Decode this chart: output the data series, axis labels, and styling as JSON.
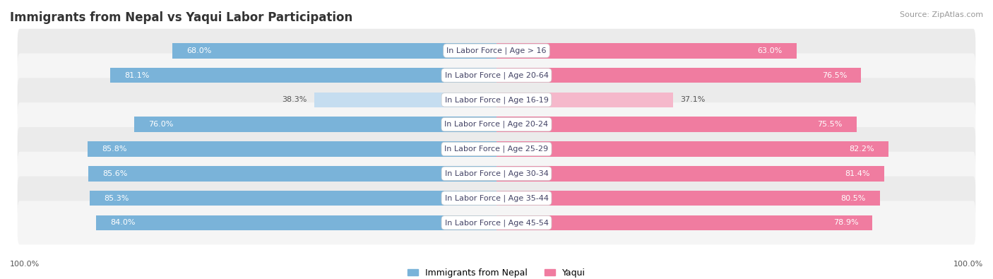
{
  "title": "Immigrants from Nepal vs Yaqui Labor Participation",
  "source": "Source: ZipAtlas.com",
  "categories": [
    "In Labor Force | Age > 16",
    "In Labor Force | Age 20-64",
    "In Labor Force | Age 16-19",
    "In Labor Force | Age 20-24",
    "In Labor Force | Age 25-29",
    "In Labor Force | Age 30-34",
    "In Labor Force | Age 35-44",
    "In Labor Force | Age 45-54"
  ],
  "nepal_values": [
    68.0,
    81.1,
    38.3,
    76.0,
    85.8,
    85.6,
    85.3,
    84.0
  ],
  "yaqui_values": [
    63.0,
    76.5,
    37.1,
    75.5,
    82.2,
    81.4,
    80.5,
    78.9
  ],
  "nepal_color": "#7ab3d9",
  "nepal_color_light": "#c5ddf0",
  "yaqui_color": "#f07ca0",
  "yaqui_color_light": "#f5b8cb",
  "row_bg_even": "#ebebeb",
  "row_bg_odd": "#f5f5f5",
  "label_color_white": "#ffffff",
  "label_color_dark": "#555555",
  "max_value": 100.0,
  "bar_height": 0.62,
  "title_fontsize": 12,
  "label_fontsize": 8,
  "cat_fontsize": 8,
  "legend_fontsize": 9,
  "footer_fontsize": 8
}
